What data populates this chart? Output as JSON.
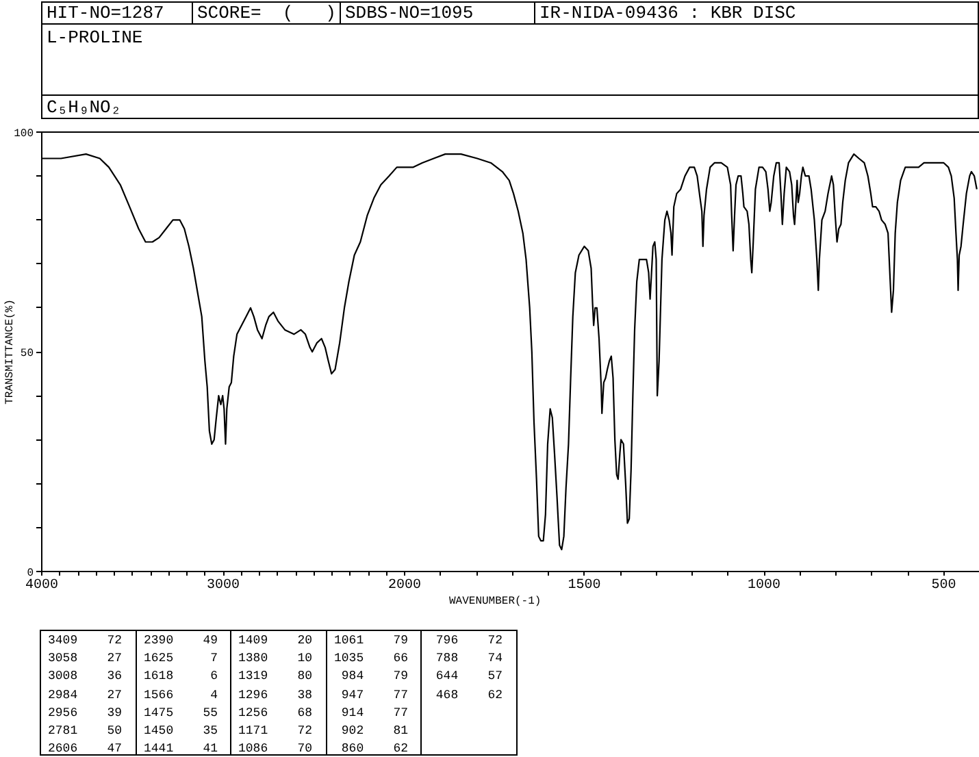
{
  "chart_data": [
    {
      "type": "line",
      "title": "L-PROLINE",
      "subtitle": "C₅H₉NO₂",
      "ylabel": "TRANSMITTANCE(%)",
      "annotations": [
        "HIT-NO=1287",
        "SCORE=  (   )",
        "SDBS-NO=1095",
        "IR-NIDA-09436 : KBR DISC",
        "3409 72",
        "3058 27",
        "3008 36",
        "2984 27",
        "2956 39",
        "2781 50",
        "2606 47",
        "2390 49",
        "1625 7",
        "1618 6",
        "1566 4",
        "1475 55",
        "1450 35",
        "1441 41",
        "1409 20",
        "1380 10",
        "1319 80",
        "1296 38",
        "1256 68",
        "1171 72",
        "1086 70",
        "1061 79",
        "1035 66",
        "984 79",
        "947 77",
        "914 77",
        "902 81",
        "860 62",
        "796 72",
        "788 74",
        "644 57",
        "468 62"
      ],
      "x": [
        4000,
        3894,
        3756,
        3680,
        3630,
        3567,
        3516,
        3466,
        3428,
        3390,
        3353,
        3315,
        3277,
        3239,
        3214,
        3189,
        3164,
        3139,
        3118,
        3101,
        3088,
        3076,
        3063,
        3050,
        3038,
        3025,
        3013,
        3003,
        2995,
        2987,
        2980,
        2967,
        2955,
        2942,
        2924,
        2899,
        2874,
        2849,
        2831,
        2811,
        2786,
        2766,
        2748,
        2723,
        2698,
        2660,
        2610,
        2572,
        2547,
        2522,
        2509,
        2484,
        2458,
        2438,
        2421,
        2403,
        2383,
        2358,
        2332,
        2307,
        2277,
        2244,
        2206,
        2169,
        2131,
        2086,
        2043,
        2000
      ],
      "values": [
        94,
        94,
        95,
        94,
        92,
        88,
        83,
        78,
        75,
        75,
        76,
        78,
        80,
        80,
        78,
        74,
        69,
        63,
        58,
        48,
        42,
        32,
        29,
        30,
        35,
        40,
        38,
        40,
        37,
        29,
        37,
        42,
        43,
        49,
        54,
        56,
        58,
        60,
        58,
        55,
        53,
        56,
        58,
        59,
        57,
        55,
        54,
        55,
        54,
        51,
        50,
        52,
        53,
        51,
        48,
        45,
        46,
        52,
        60,
        66,
        72,
        75,
        81,
        85,
        88,
        90,
        92,
        92
      ],
      "color": "#000000",
      "xlim": [
        4000,
        2000
      ],
      "ylim": [
        0,
        100
      ],
      "xticks": [
        4000,
        {
          "value": 3900,
          "label": null
        },
        {
          "value": 3800,
          "label": null
        },
        {
          "value": 3700,
          "label": null
        },
        {
          "value": 3600,
          "label": null
        },
        {
          "value": 3500,
          "label": null
        },
        {
          "value": 3400,
          "label": null
        },
        {
          "value": 3300,
          "label": null
        },
        {
          "value": 3200,
          "label": null
        },
        {
          "value": 3100,
          "label": null
        },
        3000,
        {
          "value": 2900,
          "label": null
        },
        {
          "value": 2800,
          "label": null
        },
        {
          "value": 2700,
          "label": null
        },
        {
          "value": 2600,
          "label": null
        },
        {
          "value": 2500,
          "label": null
        },
        {
          "value": 2400,
          "label": null
        },
        {
          "value": 2300,
          "label": null
        },
        {
          "value": 2200,
          "label": null
        },
        {
          "value": 2100,
          "label": null
        },
        2000
      ],
      "yticks": [
        0,
        {
          "value": 10,
          "label": null
        },
        {
          "value": 20,
          "label": null
        },
        {
          "value": 30,
          "label": null
        },
        {
          "value": 40,
          "label": null
        },
        50,
        {
          "value": 60,
          "label": null
        },
        {
          "value": 70,
          "label": null
        },
        {
          "value": 80,
          "label": null
        },
        {
          "value": 90,
          "label": null
        },
        100
      ]
    },
    {
      "type": "line",
      "xlabel": "WAVENUMBER(-1)",
      "x": [
        2000,
        1976,
        1951,
        1919,
        1887,
        1843,
        1798,
        1760,
        1728,
        1709,
        1697,
        1684,
        1671,
        1662,
        1652,
        1646,
        1640,
        1633,
        1627,
        1621,
        1614,
        1608,
        1602,
        1595,
        1589,
        1583,
        1576,
        1569,
        1563,
        1557,
        1551,
        1544,
        1538,
        1532,
        1525,
        1515,
        1500,
        1489,
        1481,
        1477,
        1474,
        1470,
        1465,
        1459,
        1453,
        1451,
        1446,
        1441,
        1436,
        1430,
        1425,
        1420,
        1415,
        1410,
        1406,
        1401,
        1398,
        1391,
        1385,
        1380,
        1375,
        1370,
        1365,
        1360,
        1354,
        1347,
        1337,
        1327,
        1321,
        1317,
        1313,
        1309,
        1304,
        1300,
        1297,
        1292,
        1284,
        1276,
        1270,
        1264,
        1259,
        1256,
        1251,
        1243,
        1232,
        1220,
        1207,
        1194,
        1186,
        1178,
        1173,
        1170,
        1167,
        1160,
        1150,
        1138,
        1119,
        1102,
        1093,
        1090,
        1086,
        1082,
        1078,
        1072,
        1064,
        1059,
        1056,
        1047,
        1042,
        1037,
        1034,
        1030,
        1024,
        1014,
        1004,
        995,
        989,
        984,
        980,
        973,
        966,
        958,
        953,
        949,
        944,
        938,
        929,
        923,
        918,
        915,
        912,
        908,
        905,
        901,
        896,
        892,
        885,
        875,
        869,
        860,
        853,
        849,
        846,
        839,
        830,
        822,
        812,
        807,
        802,
        797,
        792,
        786,
        781,
        774,
        765,
        750,
        736,
        721,
        711,
        703,
        698,
        689,
        680,
        673,
        663,
        655,
        650,
        645,
        640,
        635,
        629,
        620,
        607,
        597,
        585,
        570,
        555,
        538,
        519,
        500,
        487,
        479,
        471,
        466,
        462,
        460,
        457,
        452,
        446,
        437,
        428,
        423,
        415,
        408
      ],
      "values": [
        92,
        92,
        93,
        94,
        95,
        95,
        94,
        93,
        91,
        89,
        86,
        82,
        77,
        71,
        60,
        50,
        34,
        21,
        8,
        7,
        7,
        13,
        29,
        37,
        35,
        27,
        17,
        6,
        5,
        8,
        19,
        29,
        44,
        58,
        68,
        72,
        74,
        73,
        69,
        61,
        56,
        60,
        60,
        53,
        42,
        36,
        43,
        44,
        46,
        48,
        49,
        44,
        30,
        22,
        21,
        27,
        30,
        29,
        20,
        11,
        12,
        23,
        40,
        55,
        66,
        71,
        71,
        71,
        68,
        62,
        68,
        74,
        75,
        71,
        40,
        48,
        71,
        80,
        82,
        80,
        77,
        72,
        83,
        86,
        87,
        90,
        92,
        92,
        90,
        85,
        82,
        74,
        81,
        87,
        92,
        93,
        93,
        92,
        88,
        81,
        73,
        81,
        88,
        90,
        90,
        86,
        83,
        82,
        79,
        71,
        68,
        75,
        87,
        92,
        92,
        91,
        87,
        82,
        84,
        90,
        93,
        93,
        86,
        79,
        86,
        92,
        91,
        88,
        81,
        79,
        83,
        89,
        84,
        86,
        90,
        92,
        90,
        90,
        87,
        80,
        71,
        64,
        71,
        80,
        82,
        86,
        90,
        88,
        81,
        75,
        78,
        79,
        84,
        89,
        93,
        95,
        94,
        93,
        90,
        86,
        83,
        83,
        82,
        80,
        79,
        77,
        68,
        59,
        64,
        77,
        84,
        89,
        92,
        92,
        92,
        92,
        93,
        93,
        93,
        93,
        92,
        90,
        85,
        77,
        71,
        64,
        72,
        74,
        79,
        86,
        90,
        91,
        90,
        87
      ],
      "color": "#000000",
      "xlim": [
        2000,
        400
      ],
      "ylim": [
        0,
        100
      ],
      "xticks": [
        {
          "value": 1900,
          "label": null
        },
        {
          "value": 1800,
          "label": null
        },
        {
          "value": 1700,
          "label": null
        },
        {
          "value": 1600,
          "label": null
        },
        1500,
        {
          "value": 1400,
          "label": null
        },
        {
          "value": 1300,
          "label": null
        },
        {
          "value": 1200,
          "label": null
        },
        {
          "value": 1100,
          "label": null
        },
        1000,
        {
          "value": 900,
          "label": null
        },
        {
          "value": 800,
          "label": null
        },
        {
          "value": 700,
          "label": null
        },
        {
          "value": 600,
          "label": null
        },
        500
      ],
      "tick_labels": "x"
    }
  ]
}
